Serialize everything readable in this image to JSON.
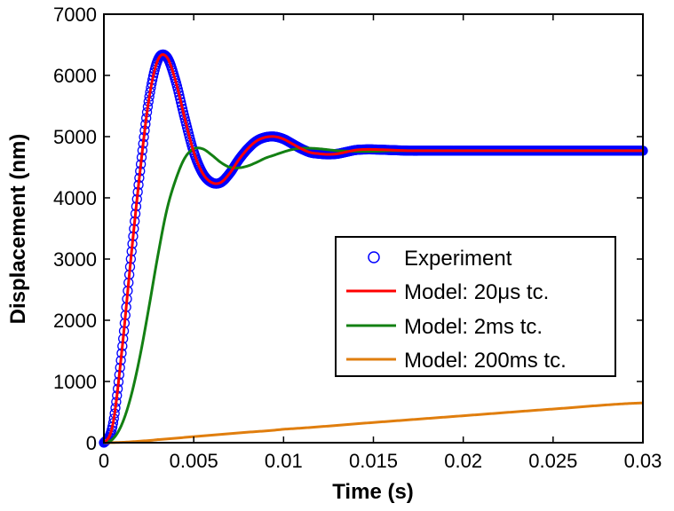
{
  "chart_data": {
    "type": "line",
    "xlabel": "Time (s)",
    "ylabel": "Displacement (nm)",
    "xlim": [
      0,
      0.03
    ],
    "ylim": [
      0,
      7000
    ],
    "x_ticks": [
      0,
      0.005,
      0.01,
      0.015,
      0.02,
      0.025,
      0.03
    ],
    "x_tick_labels": [
      "0",
      "0.005",
      "0.01",
      "0.015",
      "0.02",
      "0.025",
      "0.03"
    ],
    "y_ticks": [
      0,
      1000,
      2000,
      3000,
      4000,
      5000,
      6000,
      7000
    ],
    "y_tick_labels": [
      "0",
      "1000",
      "2000",
      "3000",
      "4000",
      "5000",
      "6000",
      "7000"
    ],
    "legend_position": "lower-right inset",
    "series": [
      {
        "name": "Experiment",
        "legend_label": "Experiment",
        "style": "markers",
        "color": "#0000ff",
        "x": [
          0,
          0.0005,
          0.001,
          0.0015,
          0.002,
          0.0025,
          0.003,
          0.0035,
          0.004,
          0.0045,
          0.005,
          0.0055,
          0.006,
          0.0065,
          0.007,
          0.0075,
          0.008,
          0.0085,
          0.009,
          0.0095,
          0.01,
          0.0105,
          0.011,
          0.0115,
          0.012,
          0.0125,
          0.013,
          0.0135,
          0.014,
          0.0145,
          0.015,
          0.016,
          0.017,
          0.018,
          0.02,
          0.022,
          0.025,
          0.028,
          0.03
        ],
        "y": [
          0,
          300,
          1500,
          3000,
          4400,
          5600,
          6250,
          6300,
          5900,
          5300,
          4750,
          4400,
          4250,
          4250,
          4400,
          4620,
          4800,
          4930,
          4990,
          5000,
          4960,
          4880,
          4800,
          4740,
          4720,
          4710,
          4720,
          4750,
          4780,
          4790,
          4790,
          4780,
          4770,
          4770,
          4770,
          4770,
          4770,
          4770,
          4770
        ]
      },
      {
        "name": "Model: 20us tc.",
        "legend_label": "Model: 20μs tc.",
        "style": "line",
        "color": "#ff0000",
        "x": [
          0,
          0.0005,
          0.001,
          0.0015,
          0.002,
          0.0025,
          0.003,
          0.0035,
          0.004,
          0.0045,
          0.005,
          0.0055,
          0.006,
          0.0065,
          0.007,
          0.0075,
          0.008,
          0.0085,
          0.009,
          0.0095,
          0.01,
          0.0105,
          0.011,
          0.0115,
          0.012,
          0.0125,
          0.013,
          0.0135,
          0.014,
          0.0145,
          0.015,
          0.016,
          0.017,
          0.018,
          0.02,
          0.022,
          0.025,
          0.028,
          0.03
        ],
        "y": [
          0,
          300,
          1500,
          3000,
          4400,
          5600,
          6250,
          6300,
          5900,
          5300,
          4750,
          4400,
          4250,
          4250,
          4400,
          4620,
          4800,
          4930,
          4990,
          5000,
          4960,
          4880,
          4800,
          4740,
          4720,
          4710,
          4720,
          4750,
          4780,
          4790,
          4790,
          4780,
          4770,
          4770,
          4770,
          4770,
          4770,
          4770,
          4770
        ]
      },
      {
        "name": "Model: 2ms tc.",
        "legend_label": "Model: 2ms tc.",
        "style": "line",
        "color": "#138013",
        "x": [
          0,
          0.0005,
          0.001,
          0.0015,
          0.002,
          0.0025,
          0.003,
          0.0035,
          0.004,
          0.0045,
          0.005,
          0.0055,
          0.006,
          0.0065,
          0.007,
          0.0075,
          0.008,
          0.0085,
          0.009,
          0.0095,
          0.01,
          0.0105,
          0.011,
          0.0115,
          0.012,
          0.013,
          0.014,
          0.015,
          0.016,
          0.018,
          0.02,
          0.025,
          0.03
        ],
        "y": [
          0,
          60,
          300,
          750,
          1400,
          2200,
          3050,
          3800,
          4300,
          4650,
          4800,
          4800,
          4700,
          4580,
          4500,
          4490,
          4520,
          4580,
          4650,
          4700,
          4750,
          4790,
          4810,
          4810,
          4800,
          4770,
          4760,
          4760,
          4770,
          4770,
          4770,
          4770,
          4770
        ]
      },
      {
        "name": "Model: 200ms tc.",
        "legend_label": "Model: 200ms tc.",
        "style": "line",
        "color": "#e07e0e",
        "x": [
          0,
          0.001,
          0.002,
          0.003,
          0.005,
          0.0075,
          0.01,
          0.015,
          0.02,
          0.025,
          0.03
        ],
        "y": [
          0,
          6,
          25,
          50,
          100,
          160,
          220,
          330,
          440,
          550,
          650
        ]
      }
    ]
  }
}
